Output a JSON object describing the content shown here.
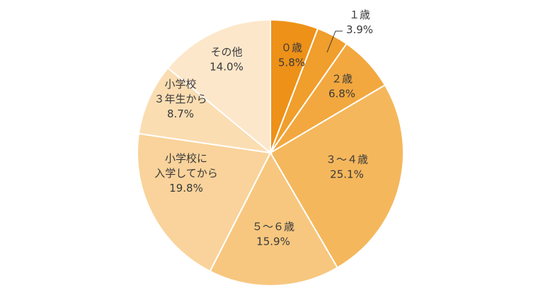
{
  "chart_data": {
    "type": "pie",
    "title": "",
    "start_angle_deg": 0,
    "direction": "clockwise",
    "slices": [
      {
        "label": "０歳",
        "value": 5.8,
        "value_label": "5.8%",
        "color": "#EE9118"
      },
      {
        "label": "１歳",
        "value": 3.9,
        "value_label": "3.9%",
        "color": "#F09E2C"
      },
      {
        "label": "２歳",
        "value": 6.8,
        "value_label": "6.8%",
        "color": "#F2A83F"
      },
      {
        "label": "３～４歳",
        "value": 25.1,
        "value_label": "25.1%",
        "color": "#F5B75C"
      },
      {
        "label": "５～６歳",
        "value": 15.9,
        "value_label": "15.9%",
        "color": "#F7C77F"
      },
      {
        "label": "小学校に入学してから",
        "label_lines": [
          "小学校に",
          "入学してから"
        ],
        "value": 19.8,
        "value_label": "19.8%",
        "color": "#F9D39B"
      },
      {
        "label": "小学校３年生から",
        "label_lines": [
          "小学校",
          "３年生から"
        ],
        "value": 8.7,
        "value_label": "8.7%",
        "color": "#FBDDB2"
      },
      {
        "label": "その他",
        "value": 14.0,
        "value_label": "14.0%",
        "color": "#FDE7CB"
      }
    ]
  }
}
